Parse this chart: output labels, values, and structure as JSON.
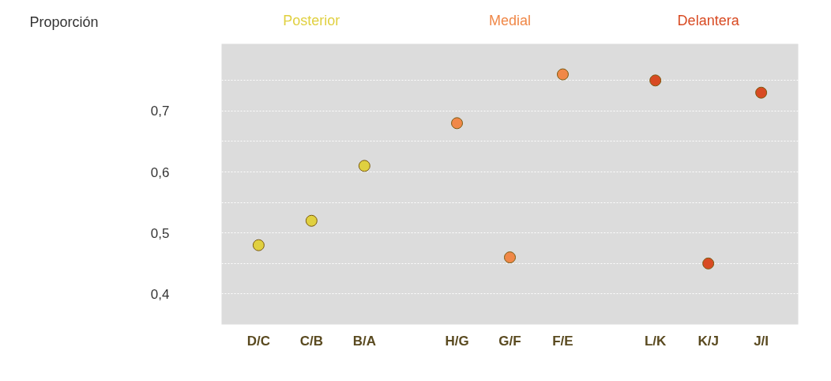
{
  "chart_data": {
    "type": "scatter",
    "ylabel": "Proporción",
    "categories": [
      "D/C",
      "C/B",
      "B/A",
      "H/G",
      "G/F",
      "F/E",
      "L/K",
      "K/J",
      "J/I"
    ],
    "series": [
      {
        "name": "Posterior",
        "color": "#e0d040",
        "values": [
          0.48,
          0.52,
          0.61,
          null,
          null,
          null,
          null,
          null,
          null
        ]
      },
      {
        "name": "Medial",
        "color": "#f08848",
        "values": [
          null,
          null,
          null,
          0.68,
          0.46,
          0.76,
          null,
          null,
          null
        ]
      },
      {
        "name": "Delantera",
        "color": "#d84a22",
        "values": [
          null,
          null,
          null,
          null,
          null,
          null,
          0.75,
          0.45,
          0.73
        ]
      }
    ],
    "ylim": [
      0.35,
      0.81
    ],
    "yticks": [
      {
        "value": 0.4,
        "label": "0,4"
      },
      {
        "value": 0.45,
        "label": null
      },
      {
        "value": 0.5,
        "label": "0,5"
      },
      {
        "value": 0.55,
        "label": null
      },
      {
        "value": 0.6,
        "label": "0,6"
      },
      {
        "value": 0.65,
        "label": null
      },
      {
        "value": 0.7,
        "label": "0,7"
      },
      {
        "value": 0.75,
        "label": null
      }
    ],
    "grid": "y",
    "marker": "circle",
    "legend": false
  }
}
